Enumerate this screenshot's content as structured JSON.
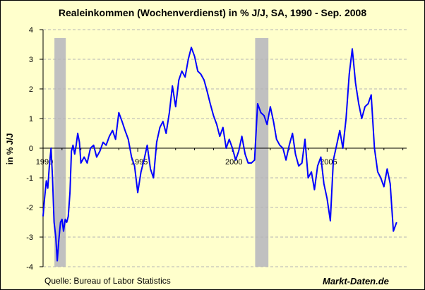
{
  "chart_data": {
    "type": "line",
    "title": "Realeinkommen (Wochenverdienst) in % J/J, SA, 1990 - Sep. 2008",
    "xlabel": "",
    "ylabel": "in % J/J",
    "xlim": [
      1990,
      2009.2
    ],
    "ylim": [
      -4,
      4
    ],
    "y_ticks": [
      -4,
      -3,
      -2,
      -1,
      0,
      1,
      2,
      3,
      4
    ],
    "x_ticks": [
      {
        "value": 1990,
        "label": "1990"
      },
      {
        "value": 1995,
        "label": "1995"
      },
      {
        "value": 2000,
        "label": "2000"
      },
      {
        "value": 2005,
        "label": "2005"
      }
    ],
    "grid": true,
    "recession_shading": [
      {
        "start": 1990.6,
        "end": 1991.2
      },
      {
        "start": 2001.2,
        "end": 2001.9
      }
    ],
    "series": [
      {
        "name": "Realeinkommen (Wochenverdienst) in % J/J",
        "color": "#0000ff",
        "x": [
          1990.0,
          1990.08,
          1990.17,
          1990.25,
          1990.33,
          1990.42,
          1990.5,
          1990.58,
          1990.67,
          1990.75,
          1990.83,
          1990.92,
          1991.0,
          1991.08,
          1991.17,
          1991.25,
          1991.33,
          1991.42,
          1991.5,
          1991.58,
          1991.67,
          1991.75,
          1991.83,
          1991.92,
          1992.0,
          1992.17,
          1992.33,
          1992.5,
          1992.67,
          1992.83,
          1993.0,
          1993.17,
          1993.33,
          1993.5,
          1993.67,
          1993.83,
          1994.0,
          1994.17,
          1994.33,
          1994.5,
          1994.67,
          1994.83,
          1995.0,
          1995.17,
          1995.33,
          1995.5,
          1995.67,
          1995.83,
          1996.0,
          1996.17,
          1996.33,
          1996.5,
          1996.67,
          1996.83,
          1997.0,
          1997.17,
          1997.33,
          1997.5,
          1997.67,
          1997.83,
          1998.0,
          1998.17,
          1998.33,
          1998.5,
          1998.67,
          1998.83,
          1999.0,
          1999.17,
          1999.33,
          1999.5,
          1999.67,
          1999.83,
          2000.0,
          2000.17,
          2000.33,
          2000.5,
          2000.67,
          2000.83,
          2001.0,
          2001.17,
          2001.33,
          2001.5,
          2001.67,
          2001.83,
          2002.0,
          2002.17,
          2002.33,
          2002.5,
          2002.67,
          2002.83,
          2003.0,
          2003.17,
          2003.33,
          2003.5,
          2003.67,
          2003.83,
          2004.0,
          2004.17,
          2004.33,
          2004.5,
          2004.67,
          2004.83,
          2005.0,
          2005.17,
          2005.33,
          2005.5,
          2005.67,
          2005.83,
          2006.0,
          2006.17,
          2006.33,
          2006.5,
          2006.67,
          2006.83,
          2007.0,
          2007.17,
          2007.33,
          2007.5,
          2007.67,
          2007.83,
          2008.0,
          2008.17,
          2008.33,
          2008.5,
          2008.67
        ],
        "values": [
          -2.3,
          -1.7,
          -1.1,
          -1.35,
          -0.6,
          0.0,
          -1.0,
          -2.5,
          -3.0,
          -3.8,
          -3.1,
          -2.5,
          -2.4,
          -2.8,
          -2.4,
          -2.5,
          -2.3,
          -1.5,
          -0.1,
          0.1,
          -0.2,
          0.1,
          0.5,
          0.2,
          -0.5,
          -0.3,
          -0.5,
          0.0,
          0.1,
          -0.3,
          -0.1,
          0.2,
          0.1,
          0.4,
          0.6,
          0.3,
          1.2,
          0.9,
          0.6,
          0.3,
          -0.3,
          -0.6,
          -1.5,
          -0.8,
          -0.4,
          0.1,
          -0.7,
          -1.0,
          0.2,
          0.7,
          0.9,
          0.5,
          1.2,
          2.1,
          1.4,
          2.3,
          2.6,
          2.4,
          3.0,
          3.4,
          3.1,
          2.6,
          2.5,
          2.3,
          1.9,
          1.5,
          1.1,
          0.8,
          0.4,
          0.7,
          0.0,
          0.3,
          0.0,
          -0.4,
          -0.1,
          0.4,
          -0.2,
          -0.5,
          -0.5,
          -0.4,
          1.5,
          1.2,
          1.1,
          0.8,
          1.4,
          0.9,
          0.3,
          0.1,
          0.0,
          -0.4,
          0.1,
          0.5,
          -0.2,
          -0.6,
          -0.5,
          0.3,
          -1.0,
          -0.8,
          -1.4,
          -0.6,
          -0.3,
          -1.2,
          -1.7,
          -2.45,
          -0.4,
          0.1,
          0.6,
          0.0,
          1.0,
          2.5,
          3.35,
          2.2,
          1.5,
          1.0,
          1.4,
          1.5,
          1.8,
          0.0,
          -0.8,
          -1.0,
          -1.3,
          -0.7,
          -1.2,
          -2.8,
          -2.5
        ]
      }
    ],
    "source": "Quelle: Bureau of Labor Statistics",
    "brand": "Markt-Daten.de"
  }
}
